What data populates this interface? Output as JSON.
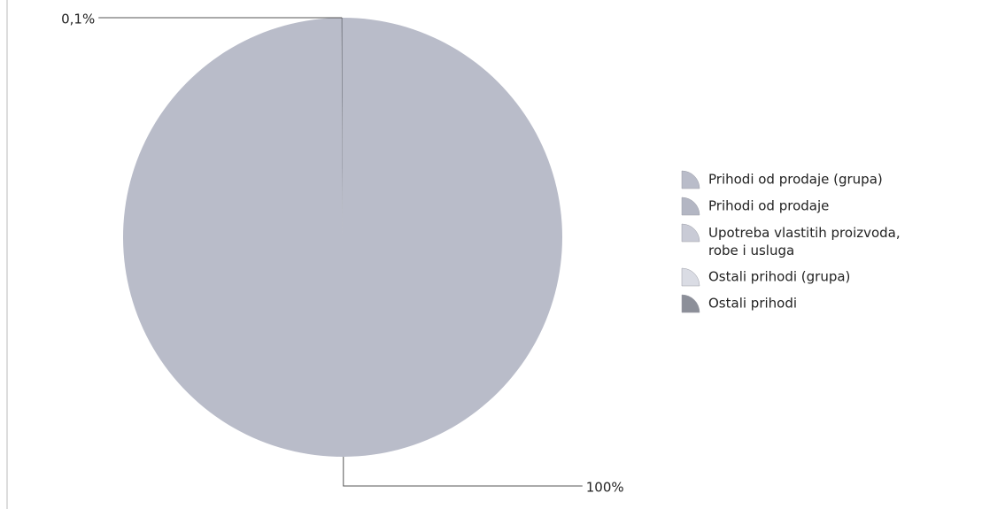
{
  "chart_data": {
    "type": "pie",
    "categories": [
      "Prihodi od prodaje (grupa)",
      "Prihodi od prodaje",
      "Upotreba vlastitih proizvoda, robe i usluga",
      "Ostali prihodi (grupa)",
      "Ostali prihodi"
    ],
    "values": [
      100,
      0,
      0,
      0,
      0.1
    ],
    "value_labels": [
      "100%",
      null,
      null,
      null,
      "0,1%"
    ],
    "colors": [
      "#b9bcc9",
      "#b3b6c3",
      "#c9cbd6",
      "#dadce4",
      "#8c8f99"
    ],
    "legend": "right"
  }
}
